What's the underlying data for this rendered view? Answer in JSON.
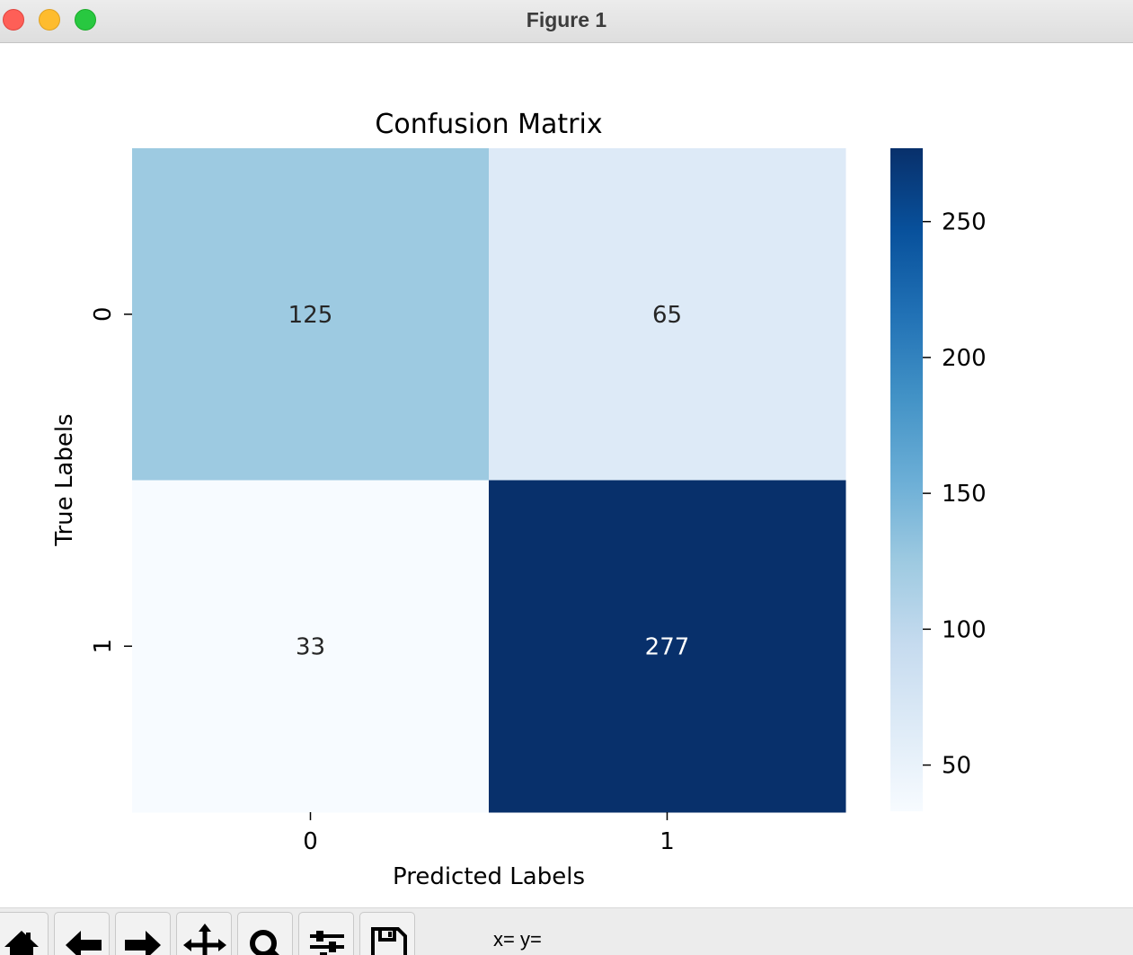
{
  "window": {
    "title": "Figure 1"
  },
  "colors": {
    "titlebar": "#e6e6e6",
    "close": "#fe5f57",
    "minimize": "#febc2e",
    "maximize": "#28c840",
    "colormap": "Blues"
  },
  "toolbar": {
    "buttons": [
      {
        "name": "home",
        "icon": "home-icon"
      },
      {
        "name": "back",
        "icon": "arrow-left-icon"
      },
      {
        "name": "forward",
        "icon": "arrow-right-icon"
      },
      {
        "name": "pan",
        "icon": "move-icon"
      },
      {
        "name": "zoom",
        "icon": "magnifier-icon"
      },
      {
        "name": "subplots",
        "icon": "sliders-icon"
      },
      {
        "name": "save",
        "icon": "floppy-disk-icon"
      }
    ],
    "coords": "x= y="
  },
  "chart_data": {
    "type": "heatmap",
    "title": "Confusion Matrix",
    "xlabel": "Predicted Labels",
    "ylabel": "True Labels",
    "x_categories": [
      "0",
      "1"
    ],
    "y_categories": [
      "0",
      "1"
    ],
    "values": [
      [
        125,
        65
      ],
      [
        33,
        277
      ]
    ],
    "annotations": [
      [
        "125",
        "65"
      ],
      [
        "33",
        "277"
      ]
    ],
    "colormap": "Blues",
    "colorbar": {
      "range": [
        33,
        277
      ],
      "ticks": [
        50,
        100,
        150,
        200,
        250
      ],
      "tick_labels": [
        "50",
        "100",
        "150",
        "200",
        "250"
      ]
    }
  }
}
